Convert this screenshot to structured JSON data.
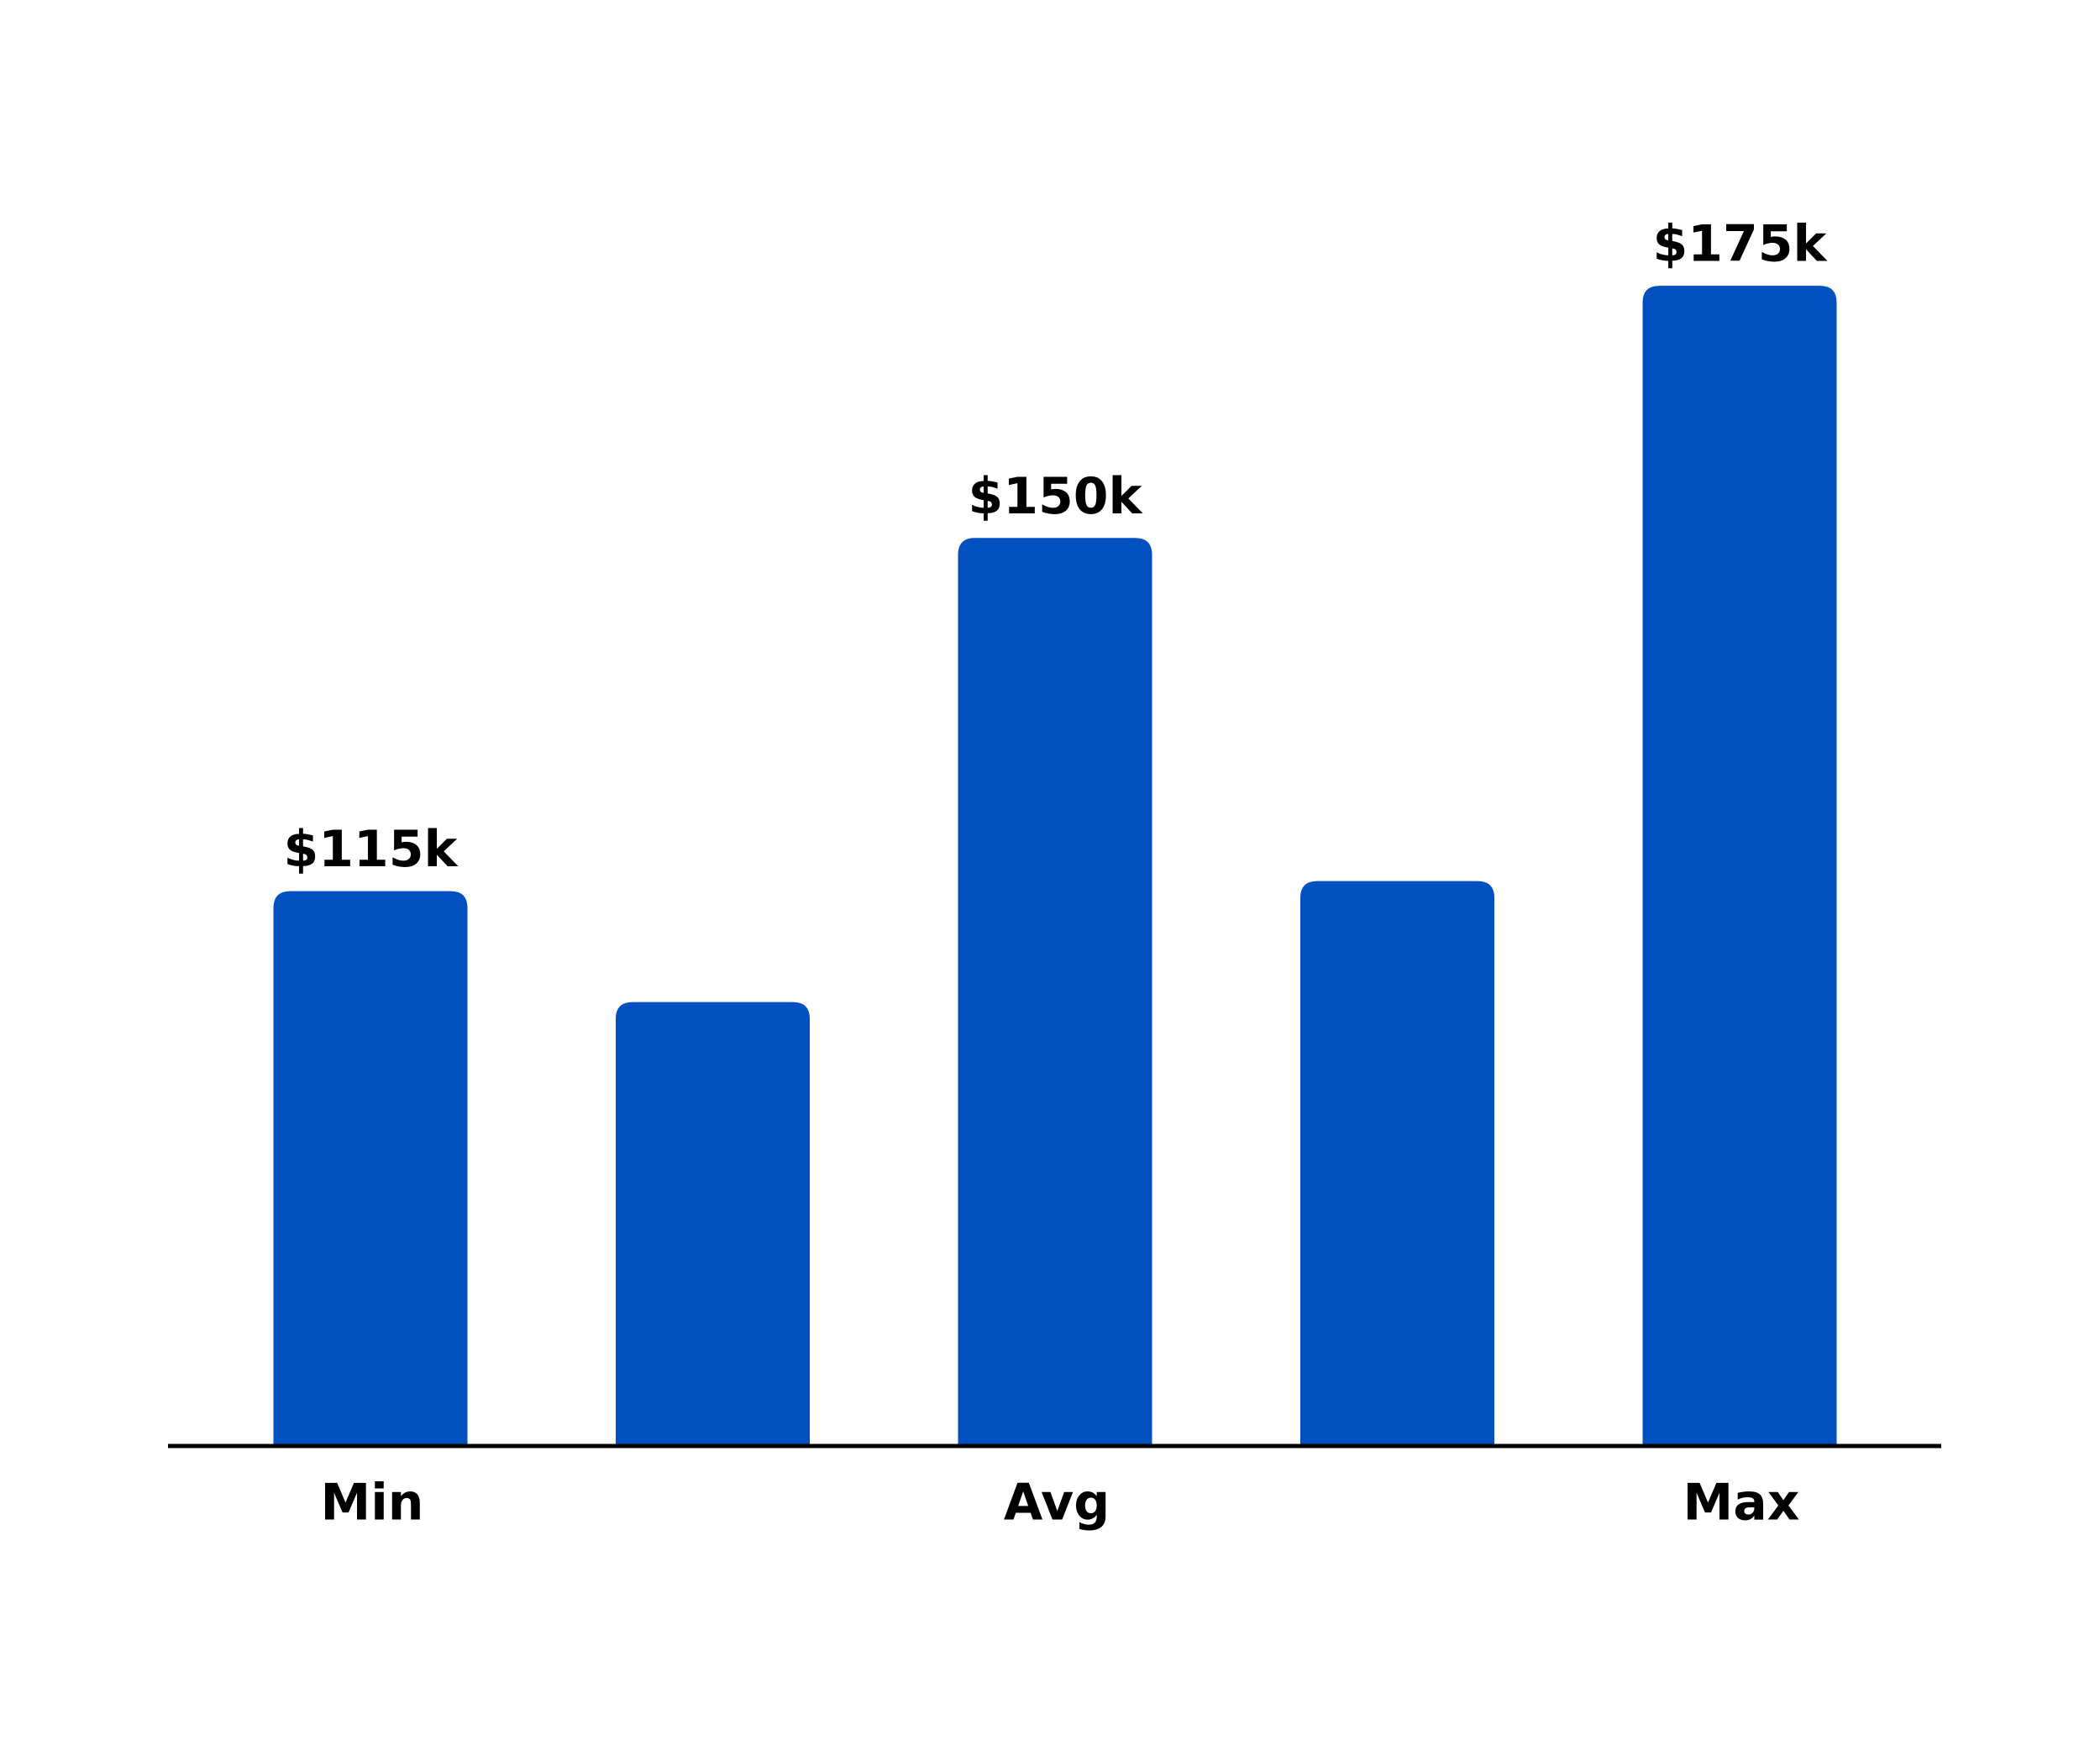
{
  "chart_data": {
    "type": "bar",
    "categories": [
      "Min",
      null,
      "Avg",
      null,
      "Max"
    ],
    "values": [
      115,
      104,
      150,
      116,
      175
    ],
    "value_labels": [
      "$115k",
      null,
      "$150k",
      null,
      "$175k"
    ],
    "color": "#0351c1",
    "ylim": [
      60,
      190
    ]
  }
}
